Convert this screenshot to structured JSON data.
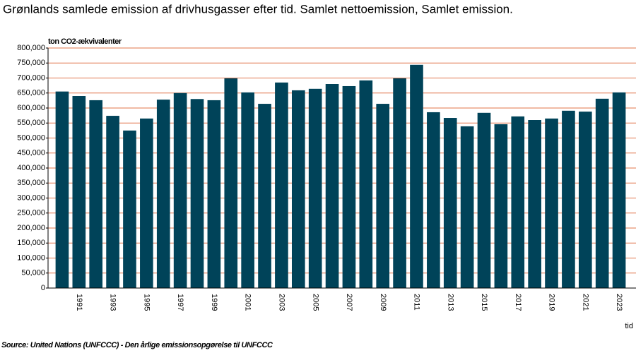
{
  "chart_data": {
    "type": "bar",
    "title": "Grønlands samlede emission af drivhusgasser efter tid. Samlet nettoemission, Samlet emission.",
    "y_label": "ton CO2-ækvivalenter",
    "x_label": "tid",
    "source": "Source: United Nations (UNFCCC) - Den årlige emissionsopgørelse til UNFCCC",
    "categories": [
      null,
      "1991",
      null,
      "1993",
      null,
      "1995",
      null,
      "1997",
      null,
      "1999",
      null,
      "2001",
      null,
      "2003",
      null,
      "2005",
      null,
      "2007",
      null,
      "2009",
      null,
      "2011",
      null,
      "2013",
      null,
      "2015",
      null,
      "2017",
      null,
      "2019",
      null,
      "2021",
      null,
      "2023"
    ],
    "values": [
      655000,
      640000,
      626000,
      574000,
      525000,
      565000,
      628000,
      650000,
      630000,
      626000,
      699000,
      652000,
      614000,
      685000,
      659000,
      664000,
      680000,
      673000,
      692000,
      614000,
      699000,
      744000,
      586000,
      567000,
      539000,
      584000,
      546000,
      572000,
      560000,
      565000,
      591000,
      588000,
      631000,
      652000
    ],
    "color": "#004359",
    "grid": true,
    "grid_color": "#e0744a",
    "ylim": [
      0,
      800000
    ],
    "yticks": [
      0,
      {
        "value": 50000,
        "label": "50,000"
      },
      {
        "value": 100000,
        "label": "100,000"
      },
      {
        "value": 150000,
        "label": "150,000"
      },
      {
        "value": 200000,
        "label": "200,000"
      },
      {
        "value": 250000,
        "label": "250,000"
      },
      {
        "value": 300000,
        "label": "300,000"
      },
      {
        "value": 350000,
        "label": "350,000"
      },
      {
        "value": 400000,
        "label": "400,000"
      },
      {
        "value": 450000,
        "label": "450,000"
      },
      {
        "value": 500000,
        "label": "500,000"
      },
      {
        "value": 550000,
        "label": "550,000"
      },
      {
        "value": 600000,
        "label": "600,000"
      },
      {
        "value": 650000,
        "label": "650,000"
      },
      {
        "value": 700000,
        "label": "700,000"
      },
      {
        "value": 750000,
        "label": "750,000"
      },
      {
        "value": 800000,
        "label": "800,000"
      }
    ]
  }
}
